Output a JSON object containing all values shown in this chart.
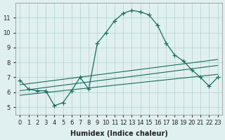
{
  "xlabel": "Humidex (Indice chaleur)",
  "ylabel": "",
  "bg_color": "#e0f0f0",
  "line_color": "#1a6b5a",
  "xlim": [
    -0.5,
    23.5
  ],
  "ylim": [
    4.5,
    12.0
  ],
  "xticks": [
    0,
    1,
    2,
    3,
    4,
    5,
    6,
    7,
    8,
    9,
    10,
    11,
    12,
    13,
    14,
    15,
    16,
    17,
    18,
    19,
    20,
    21,
    22,
    23
  ],
  "yticks": [
    5,
    6,
    7,
    8,
    9,
    10,
    11
  ],
  "main_x": [
    0,
    1,
    2,
    3,
    4,
    5,
    6,
    7,
    8,
    9,
    10,
    11,
    12,
    13,
    14,
    15,
    16,
    17,
    18,
    19,
    20,
    21,
    22,
    23
  ],
  "main_y": [
    6.8,
    6.2,
    6.1,
    6.1,
    5.1,
    5.3,
    6.1,
    7.0,
    6.2,
    9.3,
    10.0,
    10.8,
    11.3,
    11.5,
    11.4,
    11.2,
    10.5,
    9.3,
    8.5,
    8.1,
    7.5,
    7.0,
    6.4,
    7.0
  ],
  "line2_x": [
    0,
    23
  ],
  "line2_y": [
    6.1,
    7.8
  ],
  "line3_x": [
    0,
    23
  ],
  "line3_y": [
    5.8,
    7.2
  ],
  "line4_x": [
    0,
    23
  ],
  "line4_y": [
    6.5,
    8.2
  ]
}
